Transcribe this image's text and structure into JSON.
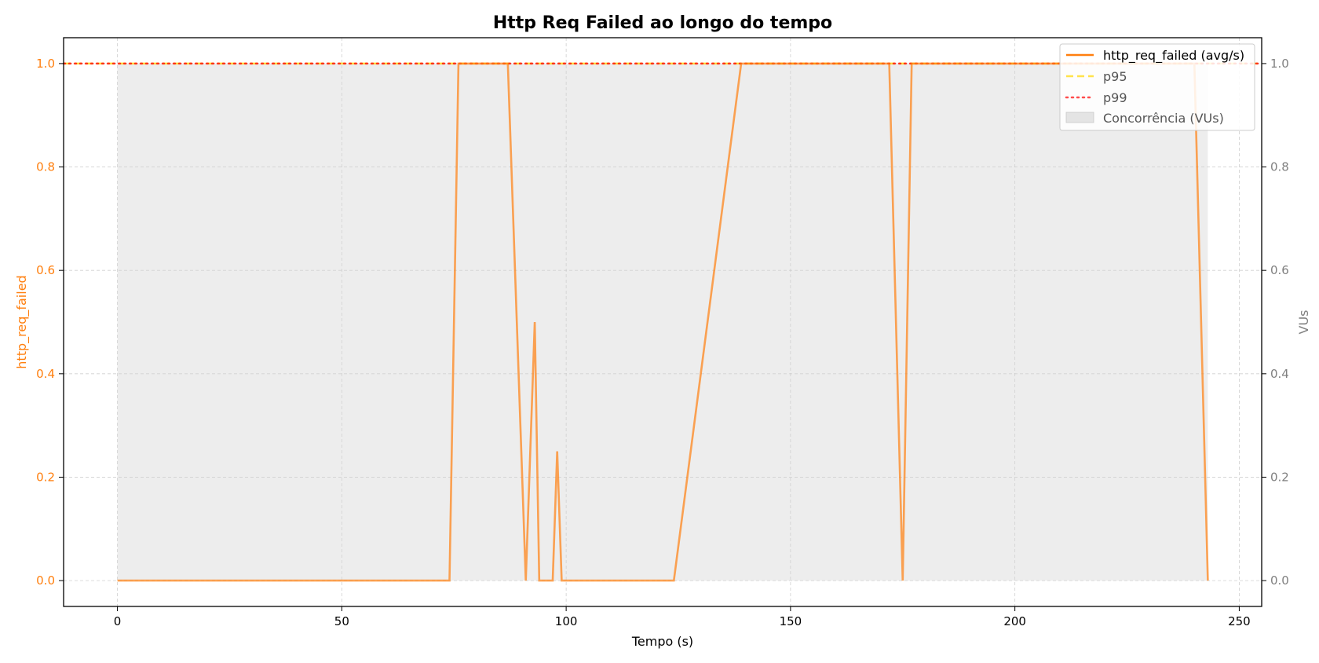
{
  "chart_data": {
    "type": "line",
    "title": "Http Req Failed ao longo do tempo",
    "xlabel": "Tempo (s)",
    "ylabel": "http_req_failed",
    "ylabel_right": "VUs",
    "xlim": [
      -12,
      255
    ],
    "ylim": [
      -0.05,
      1.05
    ],
    "ylim_right": [
      -0.05,
      1.05
    ],
    "xticks": [
      0,
      50,
      100,
      150,
      200,
      250
    ],
    "yticks": [
      0.0,
      0.2,
      0.4,
      0.6,
      0.8,
      1.0
    ],
    "yticks_right": [
      0.0,
      0.2,
      0.4,
      0.6,
      0.8,
      1.0
    ],
    "xtick_labels": [
      "0",
      "50",
      "100",
      "150",
      "200",
      "250"
    ],
    "ytick_labels": [
      "0.0",
      "0.2",
      "0.4",
      "0.6",
      "0.8",
      "1.0"
    ],
    "ytick_labels_right": [
      "0.0",
      "0.2",
      "0.4",
      "0.6",
      "0.8",
      "1.0"
    ],
    "grid": true,
    "legend_position": "top-right",
    "series": [
      {
        "name": "http_req_failed (avg/s)",
        "kind": "line",
        "color": "#ff7f0e",
        "x": [
          0,
          74,
          76,
          87,
          91,
          93,
          94,
          97,
          98,
          99,
          124,
          139,
          172,
          175,
          177,
          240,
          243
        ],
        "y": [
          0,
          0,
          1,
          1,
          0,
          0.5,
          0,
          0,
          0.25,
          0,
          0,
          1,
          1,
          0,
          1,
          1,
          0
        ]
      },
      {
        "name": "p95",
        "kind": "hline",
        "color": "#ffd700",
        "style": "dashed",
        "y": 1.0
      },
      {
        "name": "p99",
        "kind": "hline",
        "color": "#ff0000",
        "style": "dotted",
        "y": 1.0
      },
      {
        "name": "Concorrência (VUs)",
        "kind": "area",
        "axis": "right",
        "color": "#d3d3d3",
        "x": [
          0,
          243
        ],
        "y": [
          1,
          1
        ]
      }
    ]
  }
}
